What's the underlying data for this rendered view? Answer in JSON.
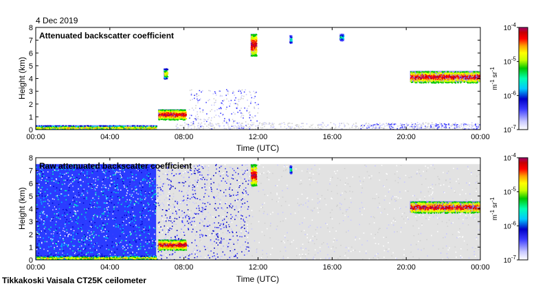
{
  "header": {
    "date": "4 Dec 2019"
  },
  "footer": {
    "station": "Tikkakoski Vaisala CT25K ceilometer"
  },
  "colorbar": {
    "unit_main": "m",
    "unit_exp1": "-1",
    "unit_mid": " sr",
    "unit_exp2": "-1",
    "ticks": [
      {
        "base": "10",
        "exp": "-4",
        "value": 0.0001
      },
      {
        "base": "10",
        "exp": "-5",
        "value": 1e-05
      },
      {
        "base": "10",
        "exp": "-6",
        "value": 1e-06
      },
      {
        "base": "10",
        "exp": "-7",
        "value": 1e-07
      }
    ],
    "colors": [
      "#ffffff",
      "#c8c8ff",
      "#3c3cff",
      "#0000c8",
      "#00c8ff",
      "#00ffb4",
      "#00c800",
      "#c8ff00",
      "#ffff00",
      "#ffa000",
      "#ff0000",
      "#c80000",
      "#a0006e"
    ]
  },
  "chart_data": [
    {
      "type": "heatmap",
      "title": "Attenuated backscatter coefficient",
      "xlabel": "Time (UTC)",
      "ylabel": "Height (km)",
      "xlim": [
        0,
        24
      ],
      "ylim": [
        0,
        8
      ],
      "xticks": [
        "00:00",
        "04:00",
        "08:00",
        "12:00",
        "16:00",
        "20:00",
        "00:00"
      ],
      "yticks": [
        "0",
        "1",
        "2",
        "3",
        "4",
        "5",
        "6",
        "7",
        "8"
      ],
      "features": [
        {
          "name": "surface layer",
          "t0": 0,
          "t1": 6.5,
          "h0": 0,
          "h1": 0.35,
          "level": "high"
        },
        {
          "name": "low cloud",
          "t0": 6.6,
          "t1": 8.1,
          "h0": 0.8,
          "h1": 1.6,
          "level": "very high"
        },
        {
          "name": "mid cloud",
          "t0": 6.9,
          "t1": 7.1,
          "h0": 4.0,
          "h1": 4.8,
          "level": "high"
        },
        {
          "name": "upper cloud",
          "t0": 11.6,
          "t1": 11.9,
          "h0": 5.8,
          "h1": 7.5,
          "level": "very high"
        },
        {
          "name": "upper cloud",
          "t0": 13.7,
          "t1": 13.8,
          "h0": 6.8,
          "h1": 7.4,
          "level": "medium"
        },
        {
          "name": "upper cloud",
          "t0": 16.4,
          "t1": 16.6,
          "h0": 7.0,
          "h1": 7.5,
          "level": "medium"
        },
        {
          "name": "mid cloud deck",
          "t0": 20.2,
          "t1": 24,
          "h0": 3.7,
          "h1": 4.6,
          "level": "very high"
        }
      ]
    },
    {
      "type": "heatmap",
      "title": "Raw attenuated backscatter coefficient",
      "xlabel": "Time (UTC)",
      "ylabel": "Height (km)",
      "xlim": [
        0,
        24
      ],
      "ylim": [
        0,
        8
      ],
      "xticks": [
        "00:00",
        "04:00",
        "08:00",
        "12:00",
        "16:00",
        "20:00",
        "00:00"
      ],
      "yticks": [
        "0",
        "1",
        "2",
        "3",
        "4",
        "5",
        "6",
        "7",
        "8"
      ],
      "features": [
        {
          "name": "noise field",
          "t0": 0,
          "t1": 6.5,
          "h0": 0,
          "h1": 7.5,
          "level": "medium"
        },
        {
          "name": "surface layer",
          "t0": 0,
          "t1": 6.5,
          "h0": 0,
          "h1": 0.35,
          "level": "high"
        },
        {
          "name": "low cloud",
          "t0": 6.6,
          "t1": 8.1,
          "h0": 0.8,
          "h1": 1.6,
          "level": "very high"
        },
        {
          "name": "upper cloud",
          "t0": 11.6,
          "t1": 11.9,
          "h0": 5.8,
          "h1": 7.5,
          "level": "very high"
        },
        {
          "name": "upper cloud",
          "t0": 13.7,
          "t1": 13.8,
          "h0": 6.8,
          "h1": 7.4,
          "level": "medium"
        },
        {
          "name": "mid cloud deck",
          "t0": 20.2,
          "t1": 24,
          "h0": 3.7,
          "h1": 4.6,
          "level": "very high"
        }
      ]
    }
  ]
}
